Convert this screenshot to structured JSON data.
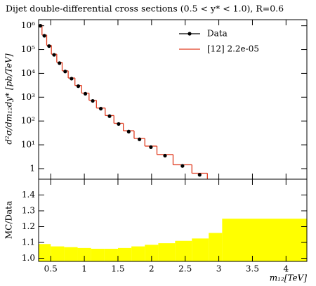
{
  "chart_data": [
    {
      "type": "step",
      "title": "Dijet double-differential cross sections (0.5 < y* < 1.0), R=0.6",
      "ylabel": "d²σ/dm₁₂dy* [pb/TeV]",
      "ylog": true,
      "legend": "upper-right",
      "xlim": [
        0.32,
        4.31
      ],
      "xticks": [
        0.5,
        1,
        1.5,
        2,
        2.5,
        3,
        3.5,
        4
      ],
      "ylim": [
        0.36,
        1800000
      ],
      "yticks": [
        1,
        {
          "value": 10,
          "label": "10¹"
        },
        {
          "value": 100,
          "label": "10²"
        },
        {
          "value": 1000,
          "label": "10³"
        },
        {
          "value": 10000,
          "label": "10⁴"
        },
        {
          "value": 100000,
          "label": "10⁵"
        },
        {
          "value": 1000000,
          "label": "10⁶"
        }
      ],
      "series": [
        {
          "name": "Data",
          "color": "#000000",
          "x": [
            0.345,
            0.405,
            0.475,
            0.55,
            0.63,
            0.715,
            0.81,
            0.91,
            1.015,
            1.125,
            1.245,
            1.375,
            1.51,
            1.66,
            1.82,
            1.99,
            2.2,
            2.46,
            2.715
          ],
          "values": [
            1000000,
            380000,
            140000,
            60000,
            27000,
            12000,
            6000,
            2900,
            1400,
            700,
            330,
            160,
            75,
            36,
            17,
            8,
            3.5,
            1.3,
            0.55
          ]
        },
        {
          "name": "[12] 2.2e-05",
          "color": "#e03c20",
          "bins": [
            0.32,
            0.37,
            0.44,
            0.51,
            0.59,
            0.67,
            0.76,
            0.86,
            0.96,
            1.07,
            1.18,
            1.31,
            1.44,
            1.58,
            1.74,
            1.9,
            2.08,
            2.32,
            2.6,
            2.83
          ],
          "values": [
            1090000,
            410000,
            150000,
            64000,
            29000,
            12800,
            6400,
            3100,
            1480,
            740,
            350,
            170,
            80,
            39,
            18.5,
            8.8,
            3.9,
            1.45,
            0.64
          ]
        }
      ]
    },
    {
      "type": "histogram",
      "ylabel": "MC/Data",
      "xlabel": "m₁₂[TeV]",
      "color": "#ffff00",
      "xlim": [
        0.32,
        4.31
      ],
      "xticks": [
        0.5,
        1,
        1.5,
        2,
        2.5,
        3,
        3.5,
        4
      ],
      "ylim": [
        0.98,
        1.5
      ],
      "yticks": [
        {
          "value": 1.0,
          "label": "1.0"
        },
        1.1,
        1.2,
        1.3,
        1.4
      ],
      "bins": [
        0.32,
        0.5,
        0.7,
        0.9,
        1.1,
        1.3,
        1.5,
        1.7,
        1.9,
        2.1,
        2.35,
        2.6,
        2.85,
        3.05,
        4.31
      ],
      "values": [
        1.09,
        1.075,
        1.07,
        1.065,
        1.06,
        1.06,
        1.065,
        1.075,
        1.085,
        1.095,
        1.11,
        1.125,
        1.16,
        1.25
      ]
    }
  ]
}
